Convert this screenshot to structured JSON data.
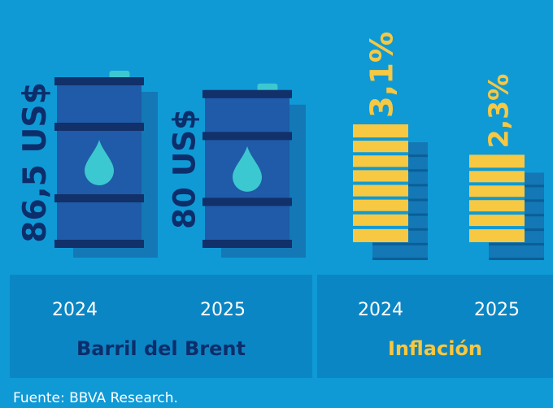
{
  "chart_data": [
    {
      "type": "barrel",
      "title": "Barril del Brent",
      "categories": [
        "2024",
        "2025"
      ],
      "values": [
        86.5,
        80
      ],
      "value_labels": [
        "86,5 US$",
        "80 US$"
      ],
      "color": "#1f5ba8"
    },
    {
      "type": "coins",
      "title": "Inflación",
      "categories": [
        "2024",
        "2025"
      ],
      "values": [
        3.1,
        2.3
      ],
      "value_labels": [
        "3,1%",
        "2,3%"
      ],
      "color": "#f7c842"
    }
  ],
  "source": "Fuente: BBVA Research."
}
